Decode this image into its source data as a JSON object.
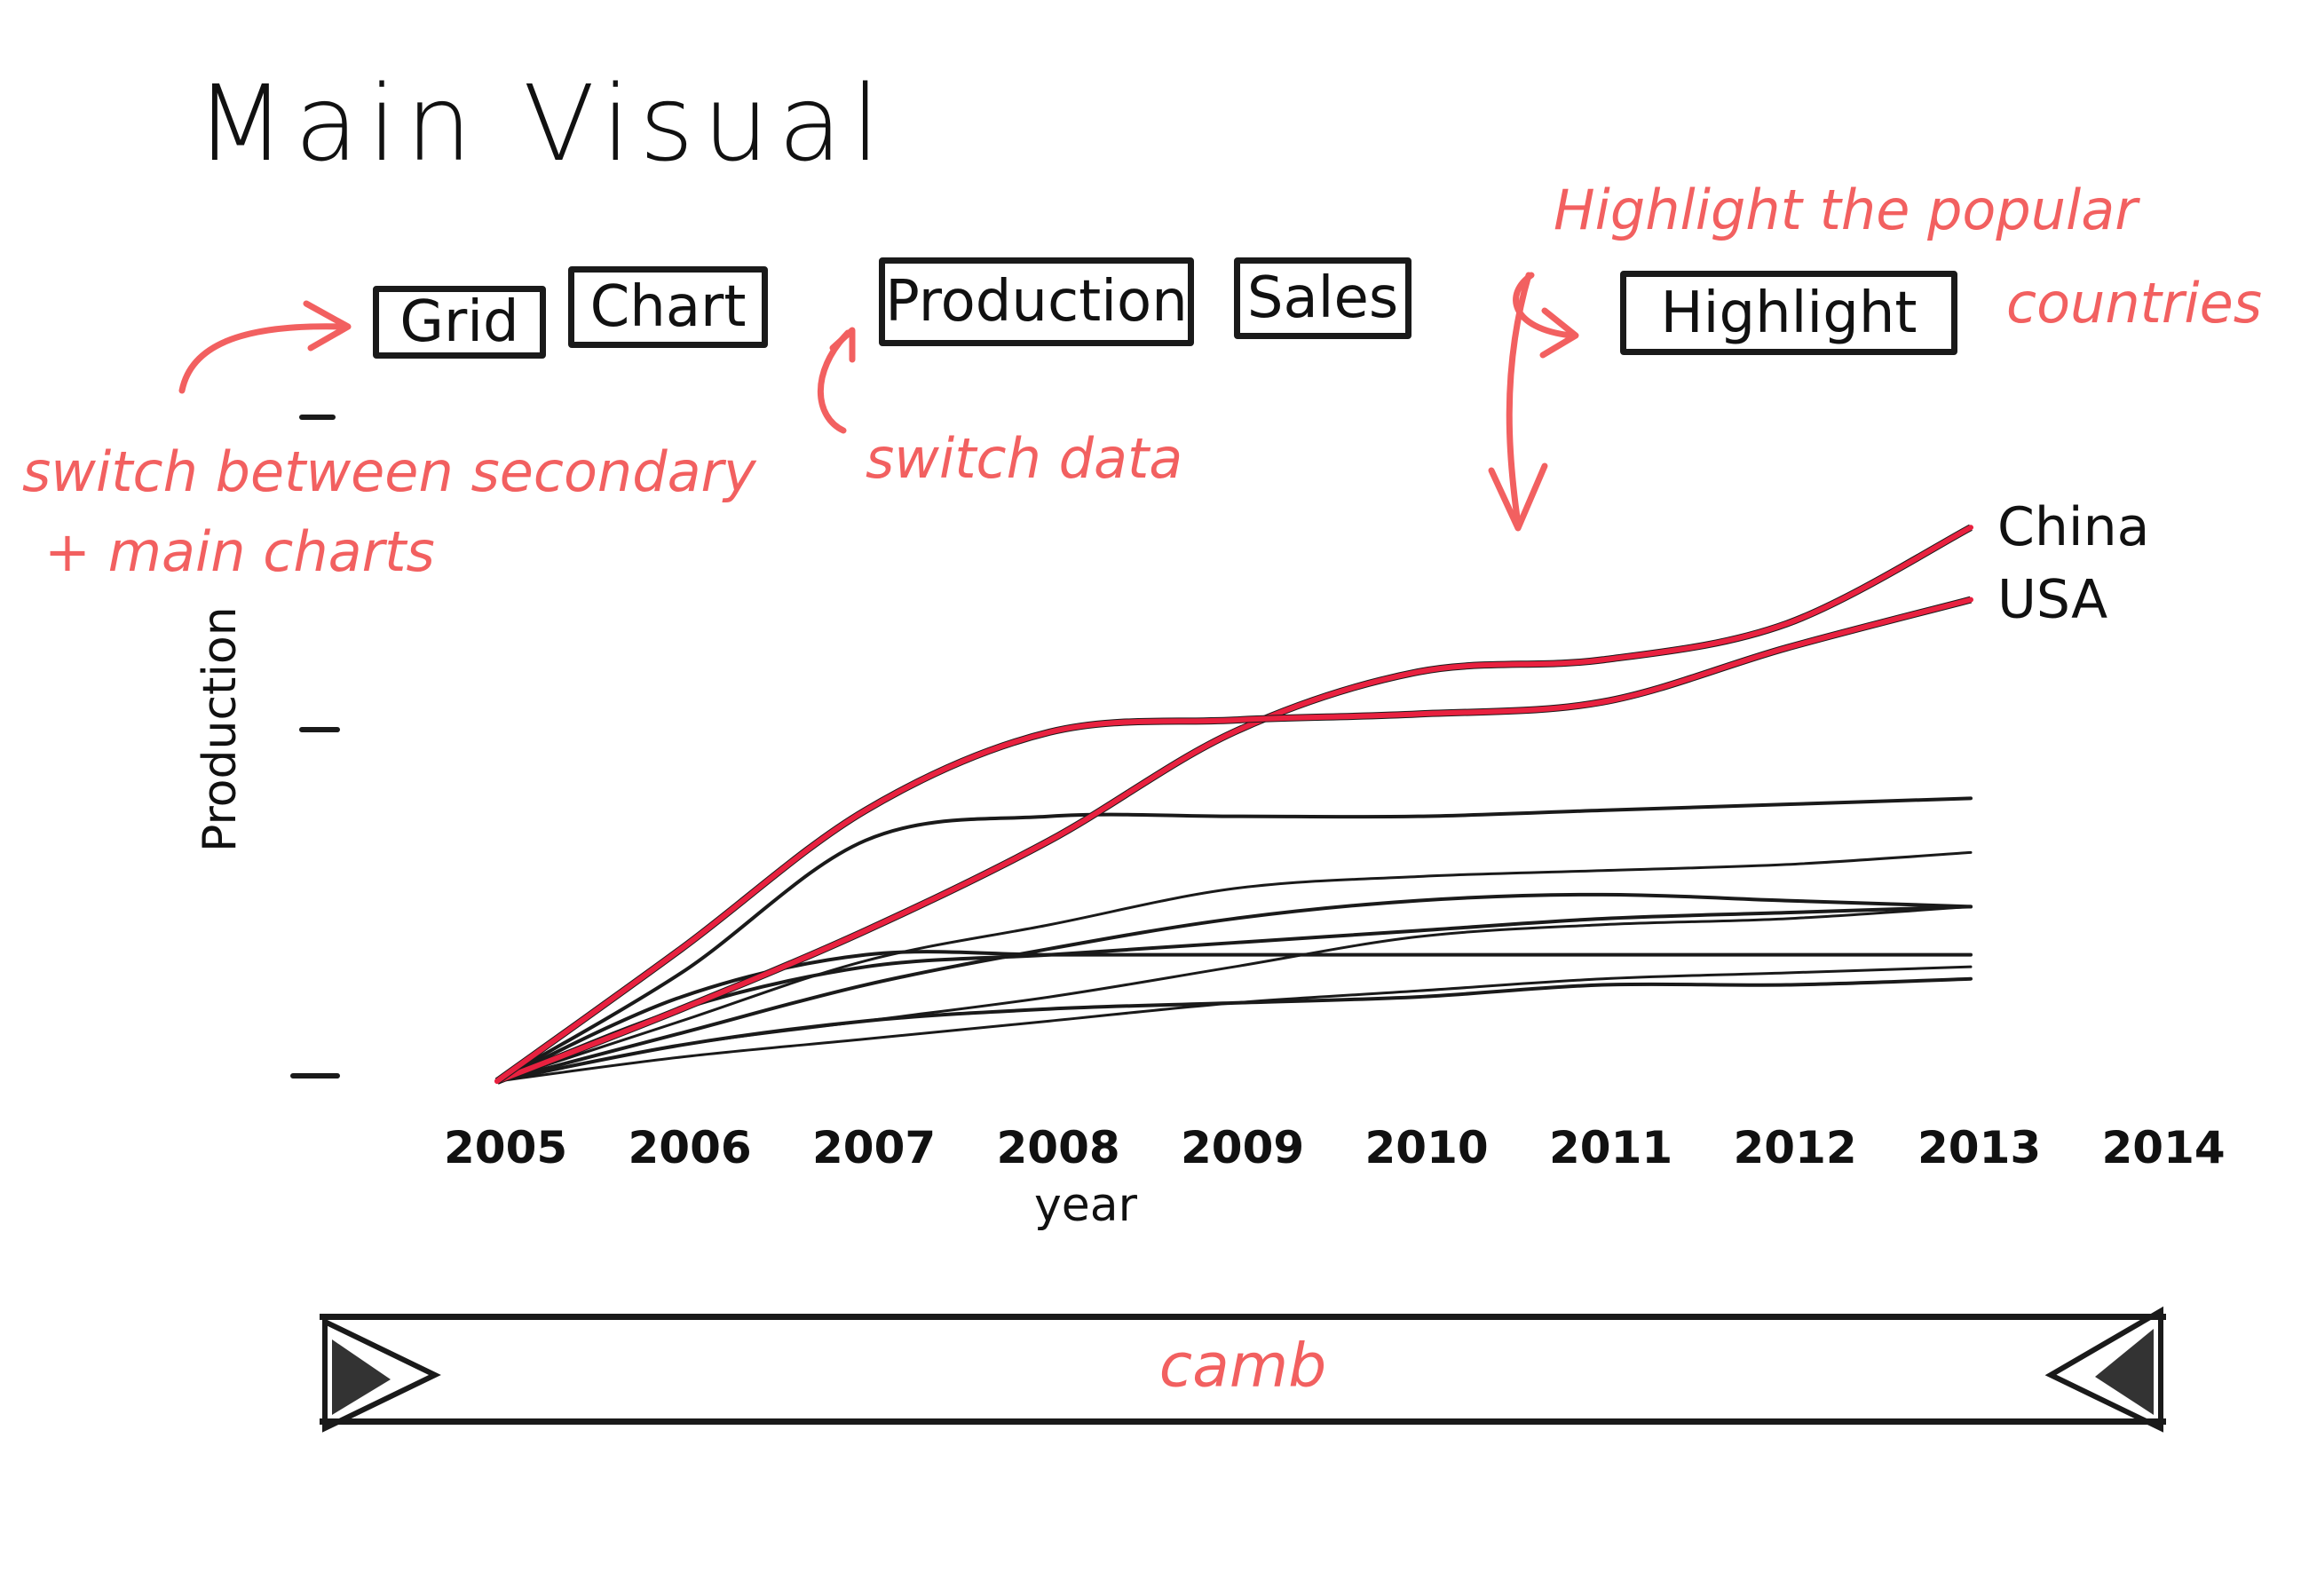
{
  "title": "Main Visual",
  "buttons": {
    "grid": "Grid",
    "chart": "Chart",
    "production": "Production",
    "sales": "Sales",
    "highlight": "Highlight"
  },
  "annotations": {
    "switch_charts_line1": "switch between secondary",
    "switch_charts_line2": "+ main charts",
    "switch_data": "switch data",
    "highlight_line1": "Highlight the popular",
    "highlight_line2": "countries"
  },
  "slider": {
    "label": "camb"
  },
  "colors": {
    "ink": "#1a1a1a",
    "accent": "#f26060",
    "highlight": "#e8213f"
  },
  "chart_data": {
    "type": "line",
    "xlabel": "year",
    "ylabel": "Production",
    "x": [
      2005,
      2006,
      2007,
      2008,
      2009,
      2010,
      2011,
      2012,
      2013
    ],
    "xticks": [
      "2005",
      "2006",
      "2007",
      "2008",
      "2009",
      "2010",
      "2011",
      "2012",
      "2013",
      "2014"
    ],
    "ylim": [
      0,
      100
    ],
    "series": [
      {
        "name": "China",
        "highlight": true,
        "values": [
          0,
          12,
          25,
          40,
          58,
          68,
          70,
          76,
          92
        ]
      },
      {
        "name": "USA",
        "highlight": true,
        "values": [
          0,
          22,
          45,
          58,
          60,
          61,
          63,
          72,
          80
        ]
      },
      {
        "name": "",
        "values": [
          0,
          18,
          40,
          44,
          44,
          44,
          45,
          46,
          47
        ]
      },
      {
        "name": "",
        "values": [
          0,
          10,
          20,
          26,
          32,
          34,
          35,
          36,
          38
        ]
      },
      {
        "name": "",
        "values": [
          0,
          8,
          16,
          22,
          27,
          30,
          31,
          30,
          29
        ]
      },
      {
        "name": "",
        "values": [
          0,
          12,
          19,
          21,
          23,
          25,
          27,
          28,
          29
        ]
      },
      {
        "name": "",
        "values": [
          0,
          6,
          10,
          14,
          19,
          24,
          26,
          27,
          29
        ]
      },
      {
        "name": "",
        "values": [
          0,
          14,
          21,
          21,
          21,
          21,
          21,
          21,
          21
        ]
      },
      {
        "name": "",
        "values": [
          0,
          6,
          10,
          12,
          13,
          14,
          16,
          16,
          17
        ]
      },
      {
        "name": "",
        "values": [
          0,
          4,
          7,
          10,
          13,
          15,
          17,
          18,
          19
        ]
      }
    ]
  }
}
